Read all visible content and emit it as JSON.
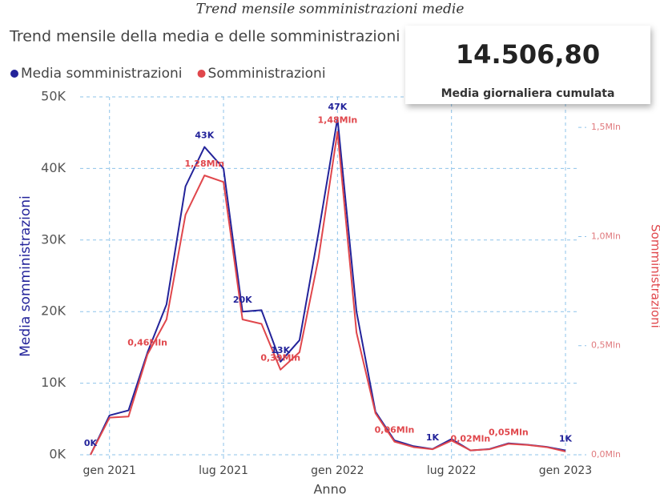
{
  "chart_data": {
    "type": "line",
    "page_title": "Trend mensile somministrazioni medie",
    "title": "Trend mensile della media e delle somministrazioni",
    "x_label": "Anno",
    "y_label": "Media somministrazioni",
    "y2_label": "Somministrazioni",
    "x": [
      "2020-12",
      "2021-01",
      "2021-02",
      "2021-03",
      "2021-04",
      "2021-05",
      "2021-06",
      "2021-07",
      "2021-08",
      "2021-09",
      "2021-10",
      "2021-11",
      "2021-12",
      "2022-01",
      "2022-02",
      "2022-03",
      "2022-04",
      "2022-05",
      "2022-06",
      "2022-07",
      "2022-08",
      "2022-09",
      "2022-10",
      "2022-11",
      "2022-12",
      "2023-01"
    ],
    "xticks": [
      {
        "value": "2021-01",
        "label": "gen 2021"
      },
      {
        "value": "2021-07",
        "label": "lug 2021"
      },
      {
        "value": "2022-01",
        "label": "gen 2022"
      },
      {
        "value": "2022-07",
        "label": "lug 2022"
      },
      {
        "value": "2023-01",
        "label": "gen 2023"
      }
    ],
    "ylim": [
      0,
      50000
    ],
    "yticks": [
      {
        "value": 0,
        "label": "0K"
      },
      {
        "value": 10000,
        "label": "10K"
      },
      {
        "value": 20000,
        "label": "20K"
      },
      {
        "value": 30000,
        "label": "30K"
      },
      {
        "value": 40000,
        "label": "40K"
      },
      {
        "value": 50000,
        "label": "50K"
      }
    ],
    "y2lim": [
      0,
      1640000
    ],
    "y2ticks": [
      {
        "value": 0,
        "label": "0,0Mln"
      },
      {
        "value": 500000,
        "label": "0,5Mln"
      },
      {
        "value": 1000000,
        "label": "1,0Mln"
      },
      {
        "value": 1500000,
        "label": "1,5Mln"
      }
    ],
    "grid": true,
    "legend": "top-left",
    "series": [
      {
        "name": "Media somministrazioni",
        "color": "#23239a",
        "values": [
          0,
          5500,
          6200,
          14300,
          21000,
          37500,
          43000,
          40000,
          20000,
          20200,
          13000,
          16000,
          31000,
          47000,
          20000,
          6000,
          2000,
          1200,
          800,
          2200,
          600,
          800,
          1600,
          1400,
          1100,
          600
        ],
        "value_labels": [
          "0K",
          null,
          null,
          null,
          null,
          null,
          "43K",
          null,
          "20K",
          null,
          "13K",
          null,
          null,
          "47K",
          null,
          null,
          null,
          null,
          "1K",
          null,
          null,
          null,
          null,
          null,
          null,
          "1K"
        ]
      },
      {
        "name": "Somministrazioni",
        "color": "#e0474c",
        "axis": "y2",
        "values": [
          0,
          170000,
          175000,
          460000,
          620000,
          1100000,
          1280000,
          1250000,
          620000,
          600000,
          390000,
          470000,
          900000,
          1480000,
          560000,
          190000,
          60000,
          35000,
          25000,
          65000,
          20000,
          25000,
          50000,
          45000,
          35000,
          15000
        ],
        "value_labels": [
          null,
          null,
          null,
          "0,46Mln",
          null,
          null,
          "1,28Mln",
          null,
          null,
          null,
          "0,39Mln",
          null,
          null,
          "1,48Mln",
          null,
          null,
          "0,06Mln",
          null,
          null,
          null,
          "0,02Mln",
          null,
          "0,05Mln",
          null,
          null,
          null
        ]
      }
    ]
  },
  "card": {
    "value": "14.506,80",
    "label": "Media giornaliera cumulata"
  }
}
